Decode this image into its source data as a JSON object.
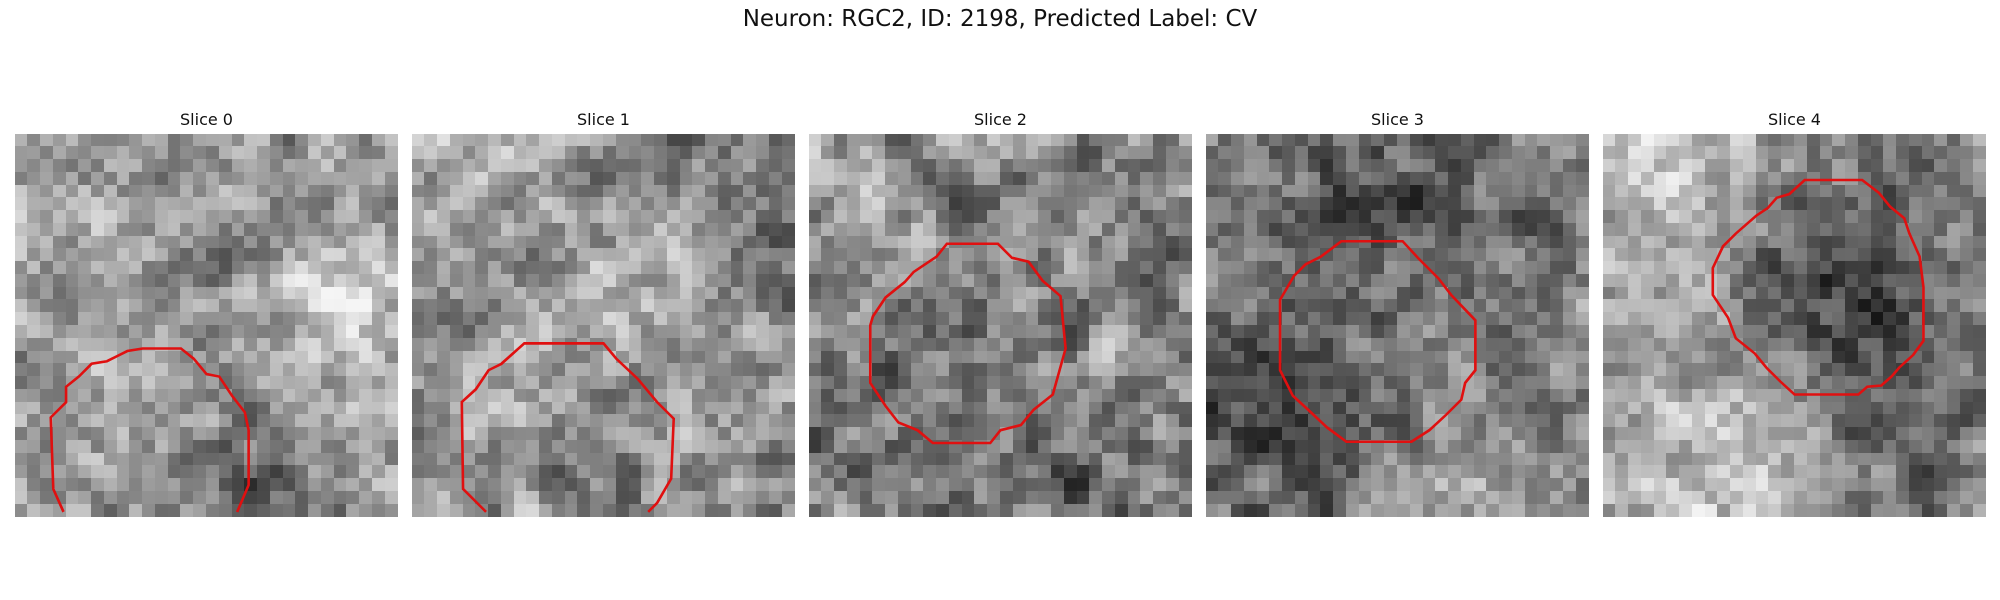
{
  "figure": {
    "title": "Neuron: RGC2, ID: 2198, Predicted Label: CV"
  },
  "panels": [
    {
      "label": "Slice 0",
      "outline_color": "#e01010"
    },
    {
      "label": "Slice 1",
      "outline_color": "#e01010"
    },
    {
      "label": "Slice 2",
      "outline_color": "#e01010"
    },
    {
      "label": "Slice 3",
      "outline_color": "#e01010"
    },
    {
      "label": "Slice 4",
      "outline_color": "#e01010"
    }
  ]
}
